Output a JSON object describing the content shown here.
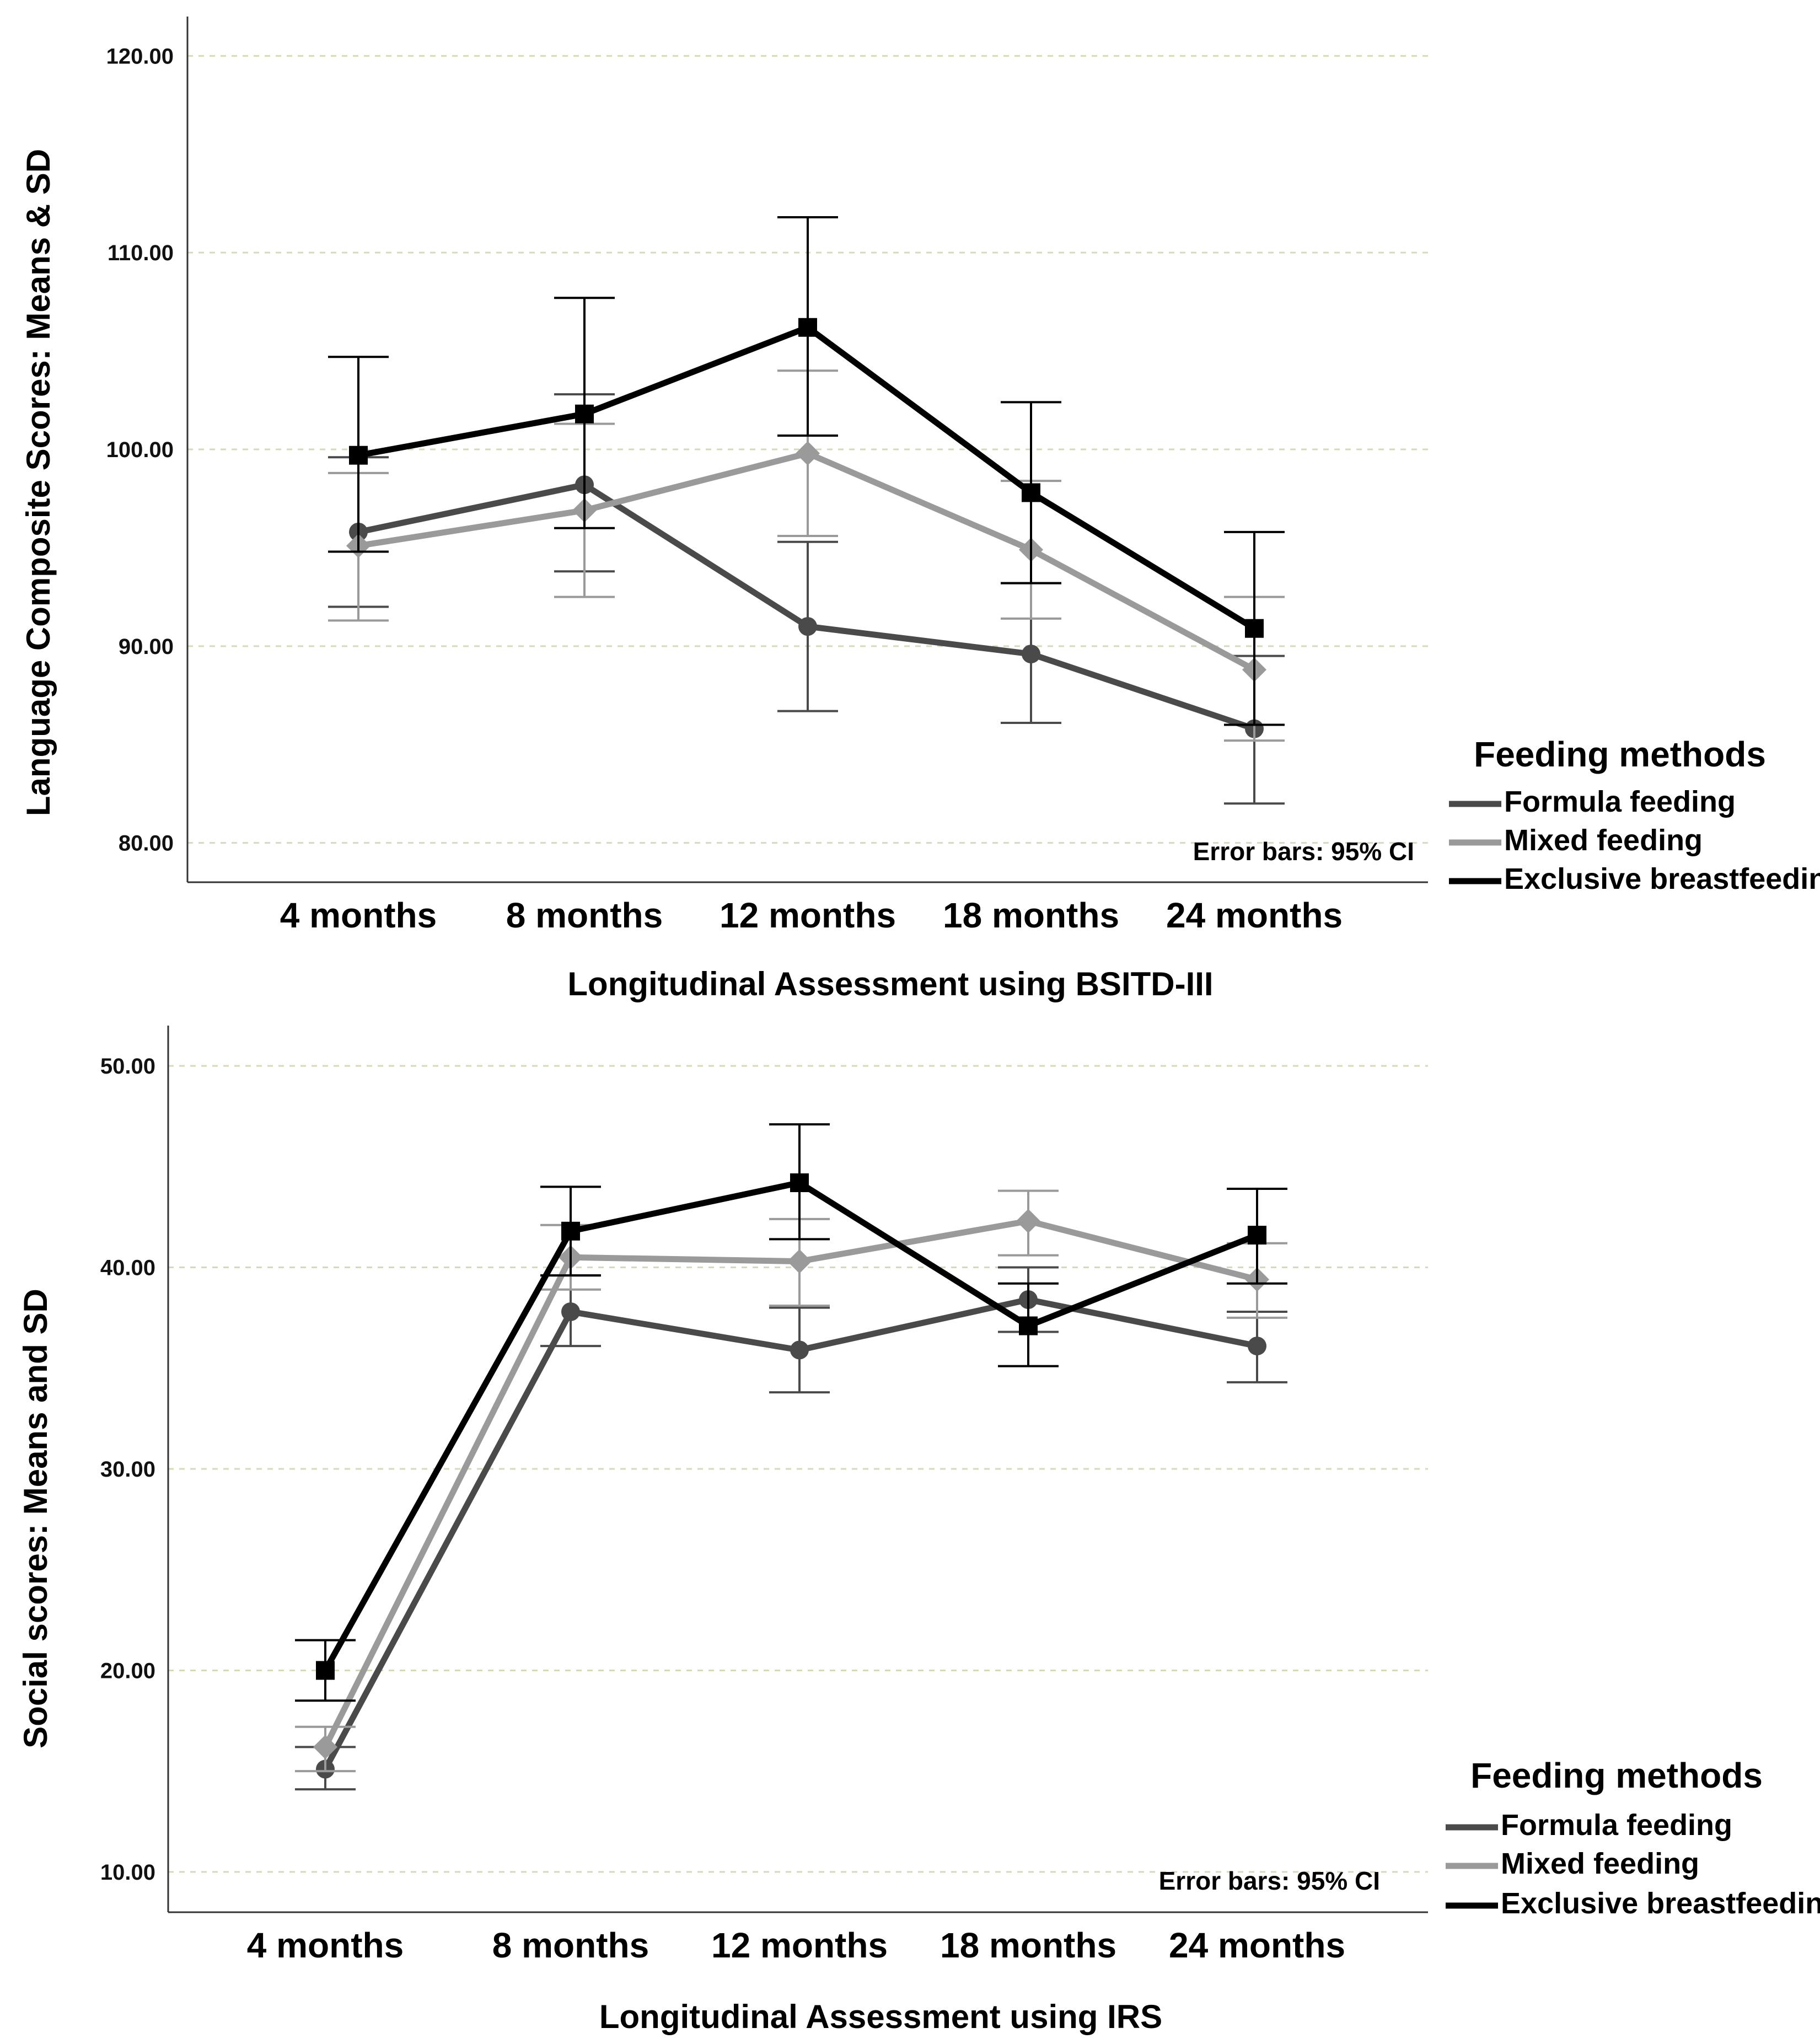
{
  "chart_data": [
    {
      "type": "line",
      "ylabel": "Language Composite Scores: Means & SD",
      "xlabel": "Longitudinal Assessment using BSITD-III",
      "categories": [
        "4 months",
        "8 months",
        "12 months",
        "18 months",
        "24 months"
      ],
      "ylim": [
        78,
        122
      ],
      "y_ticks": [
        "80.00",
        "90.00",
        "100.00",
        "110.00",
        "120.00"
      ],
      "grid": true,
      "note": "Error bars: 95% CI",
      "legend_title": "Feeding methods",
      "legend_position": "right",
      "series": [
        {
          "name": "Formula feeding",
          "color": "#4a4a4a",
          "marker": "circle",
          "values": [
            95.8,
            98.2,
            91.0,
            89.6,
            85.8
          ],
          "ci_low": [
            92.0,
            93.8,
            86.7,
            86.1,
            82.0
          ],
          "ci_high": [
            99.6,
            102.8,
            95.3,
            93.2,
            89.5
          ]
        },
        {
          "name": "Mixed feeding",
          "color": "#9a9a9a",
          "marker": "diamond",
          "values": [
            95.1,
            96.9,
            99.8,
            94.9,
            88.8
          ],
          "ci_low": [
            91.3,
            92.5,
            95.6,
            91.4,
            85.2
          ],
          "ci_high": [
            98.8,
            101.3,
            104.0,
            98.4,
            92.5
          ]
        },
        {
          "name": "Exclusive breastfeeding",
          "color": "#000000",
          "marker": "square",
          "values": [
            99.7,
            101.8,
            106.2,
            97.8,
            90.9
          ],
          "ci_low": [
            94.8,
            96.0,
            100.7,
            93.2,
            86.0
          ],
          "ci_high": [
            104.7,
            107.7,
            111.8,
            102.4,
            95.8
          ]
        }
      ]
    },
    {
      "type": "line",
      "ylabel": "Social scores: Means and SD",
      "xlabel": "Longitudinal Assessment using IRS",
      "categories": [
        "4 months",
        "8 months",
        "12 months",
        "18 months",
        "24 months"
      ],
      "ylim": [
        8,
        52
      ],
      "y_ticks": [
        "10.00",
        "20.00",
        "30.00",
        "40.00",
        "50.00"
      ],
      "grid": true,
      "note": "Error bars: 95% CI",
      "legend_title": "Feeding methods",
      "legend_position": "right",
      "series": [
        {
          "name": "Formula feeding",
          "color": "#4a4a4a",
          "marker": "circle",
          "values": [
            15.1,
            37.8,
            35.9,
            38.4,
            36.1
          ],
          "ci_low": [
            14.1,
            36.1,
            33.8,
            36.8,
            34.3
          ],
          "ci_high": [
            16.2,
            39.6,
            38.0,
            40.0,
            37.8
          ]
        },
        {
          "name": "Mixed feeding",
          "color": "#9a9a9a",
          "marker": "diamond",
          "values": [
            16.2,
            40.5,
            40.3,
            42.3,
            39.4
          ],
          "ci_low": [
            15.0,
            38.9,
            38.1,
            40.6,
            37.5
          ],
          "ci_high": [
            17.2,
            42.1,
            42.4,
            43.8,
            41.2
          ]
        },
        {
          "name": "Exclusive breastfeeding",
          "color": "#000000",
          "marker": "square",
          "values": [
            20.0,
            41.8,
            44.2,
            37.1,
            41.6
          ],
          "ci_low": [
            18.5,
            39.6,
            41.4,
            35.1,
            39.2
          ],
          "ci_high": [
            21.5,
            44.0,
            47.1,
            39.2,
            43.9
          ]
        }
      ]
    }
  ]
}
